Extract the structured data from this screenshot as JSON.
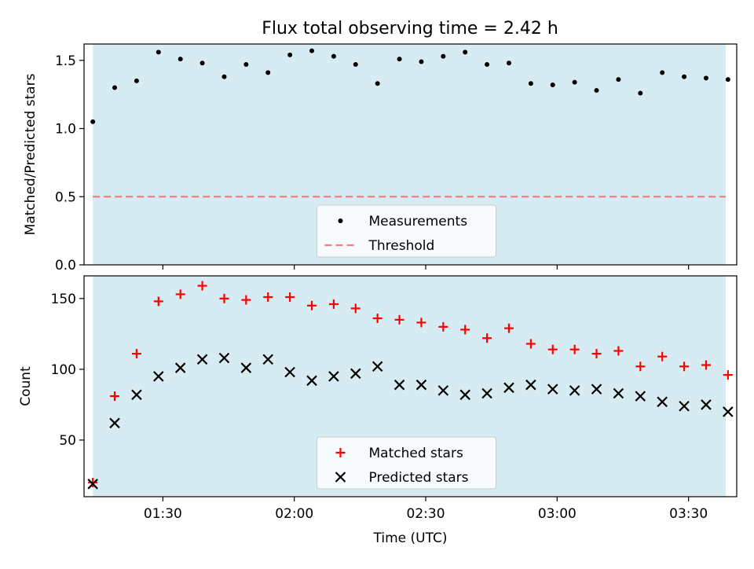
{
  "title": "Flux total observing time = 2.42 h",
  "colors": {
    "observing_band": "#add8e6",
    "measurement": "#000000",
    "threshold": "#f08080",
    "matched": "#ff0000",
    "predicted": "#000000",
    "frame": "#000000",
    "legend_bg": "#ffffff",
    "legend_border": "#cccccc"
  },
  "chart_data": [
    {
      "type": "scatter",
      "ylabel": "Matched/Predicted stars",
      "xlabel": "",
      "xlim": [
        "01:12",
        "03:41"
      ],
      "ylim": [
        0,
        1.62
      ],
      "yticks": [
        0.0,
        0.5,
        1.0,
        1.5
      ],
      "ytick_labels": [
        "0.0",
        "0.5",
        "1.0",
        "1.5"
      ],
      "observing_window": [
        "01:14",
        "03:38.5"
      ],
      "legend": {
        "placement": "lower center",
        "entries": [
          "Measurements",
          "Threshold"
        ]
      },
      "series": [
        {
          "name": "Measurements",
          "marker": "dot",
          "x": [
            "01:14",
            "01:19",
            "01:24",
            "01:29",
            "01:34",
            "01:39",
            "01:44",
            "01:49",
            "01:54",
            "01:59",
            "02:04",
            "02:09",
            "02:14",
            "02:19",
            "02:24",
            "02:29",
            "02:34",
            "02:39",
            "02:44",
            "02:49",
            "02:54",
            "02:59",
            "03:04",
            "03:09",
            "03:14",
            "03:19",
            "03:24",
            "03:29",
            "03:34",
            "03:39"
          ],
          "y": [
            1.05,
            1.3,
            1.35,
            1.56,
            1.51,
            1.48,
            1.38,
            1.47,
            1.41,
            1.54,
            1.57,
            1.53,
            1.47,
            1.33,
            1.51,
            1.49,
            1.53,
            1.56,
            1.47,
            1.48,
            1.33,
            1.32,
            1.34,
            1.28,
            1.36,
            1.26,
            1.41,
            1.38,
            1.37,
            1.36
          ]
        },
        {
          "name": "Threshold",
          "line": "dashed",
          "x": [
            "01:14",
            "03:38.5"
          ],
          "y": [
            0.5,
            0.5
          ]
        }
      ]
    },
    {
      "type": "scatter",
      "ylabel": "Count",
      "xlabel": "Time (UTC)",
      "xlim": [
        "01:12",
        "03:41"
      ],
      "ylim": [
        10,
        166
      ],
      "yticks": [
        50,
        100,
        150
      ],
      "ytick_labels": [
        "50",
        "100",
        "150"
      ],
      "xticks": [
        "01:30",
        "02:00",
        "02:30",
        "03:00",
        "03:30"
      ],
      "xtick_labels": [
        "01:30",
        "02:00",
        "02:30",
        "03:00",
        "03:30"
      ],
      "observing_window": [
        "01:14",
        "03:38.5"
      ],
      "legend": {
        "placement": "lower center",
        "entries": [
          "Matched stars",
          "Predicted stars"
        ]
      },
      "series": [
        {
          "name": "Matched stars",
          "marker": "plus",
          "x": [
            "01:14",
            "01:19",
            "01:24",
            "01:29",
            "01:34",
            "01:39",
            "01:44",
            "01:49",
            "01:54",
            "01:59",
            "02:04",
            "02:09",
            "02:14",
            "02:19",
            "02:24",
            "02:29",
            "02:34",
            "02:39",
            "02:44",
            "02:49",
            "02:54",
            "02:59",
            "03:04",
            "03:09",
            "03:14",
            "03:19",
            "03:24",
            "03:29",
            "03:34",
            "03:39"
          ],
          "y": [
            20,
            81,
            111,
            148,
            153,
            159,
            150,
            149,
            151,
            151,
            145,
            146,
            143,
            136,
            135,
            133,
            130,
            128,
            122,
            129,
            118,
            114,
            114,
            111,
            113,
            102,
            109,
            102,
            103,
            96
          ]
        },
        {
          "name": "Predicted stars",
          "marker": "x",
          "x": [
            "01:14",
            "01:19",
            "01:24",
            "01:29",
            "01:34",
            "01:39",
            "01:44",
            "01:49",
            "01:54",
            "01:59",
            "02:04",
            "02:09",
            "02:14",
            "02:19",
            "02:24",
            "02:29",
            "02:34",
            "02:39",
            "02:44",
            "02:49",
            "02:54",
            "02:59",
            "03:04",
            "03:09",
            "03:14",
            "03:19",
            "03:24",
            "03:29",
            "03:34",
            "03:39"
          ],
          "y": [
            19,
            62,
            82,
            95,
            101,
            107,
            108,
            101,
            107,
            98,
            92,
            95,
            97,
            102,
            89,
            89,
            85,
            82,
            83,
            87,
            89,
            86,
            85,
            86,
            83,
            81,
            77,
            74,
            75,
            70
          ]
        }
      ]
    }
  ]
}
